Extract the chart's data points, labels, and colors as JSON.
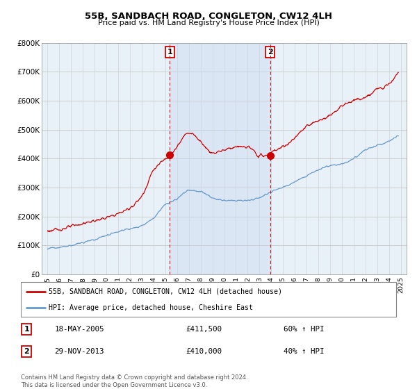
{
  "title": "55B, SANDBACH ROAD, CONGLETON, CW12 4LH",
  "subtitle": "Price paid vs. HM Land Registry's House Price Index (HPI)",
  "ylabel_ticks": [
    "£0",
    "£100K",
    "£200K",
    "£300K",
    "£400K",
    "£500K",
    "£600K",
    "£700K",
    "£800K"
  ],
  "ylim": [
    0,
    800000
  ],
  "xlim_start": 1994.5,
  "xlim_end": 2025.5,
  "x_ticks": [
    1995,
    1996,
    1997,
    1998,
    1999,
    2000,
    2001,
    2002,
    2003,
    2004,
    2005,
    2006,
    2007,
    2008,
    2009,
    2010,
    2011,
    2012,
    2013,
    2014,
    2015,
    2016,
    2017,
    2018,
    2019,
    2020,
    2021,
    2022,
    2023,
    2024,
    2025
  ],
  "sale1_x": 2005.38,
  "sale1_y": 411500,
  "sale2_x": 2013.91,
  "sale2_y": 410000,
  "sale1_date": "18-MAY-2005",
  "sale1_price": "£411,500",
  "sale1_hpi": "60% ↑ HPI",
  "sale2_date": "29-NOV-2013",
  "sale2_price": "£410,000",
  "sale2_hpi": "40% ↑ HPI",
  "red_line_color": "#cc0000",
  "blue_line_color": "#6699cc",
  "shade_color": "#ddeeff",
  "background_color": "#e8f0f8",
  "grid_color": "#cccccc",
  "legend_label_red": "55B, SANDBACH ROAD, CONGLETON, CW12 4LH (detached house)",
  "legend_label_blue": "HPI: Average price, detached house, Cheshire East",
  "footer": "Contains HM Land Registry data © Crown copyright and database right 2024.\nThis data is licensed under the Open Government Licence v3.0.",
  "red_key_x": [
    1995,
    1996,
    1997,
    1998,
    1999,
    2000,
    2001,
    2002,
    2003,
    2004,
    2005.38,
    2006,
    2007,
    2008,
    2009,
    2010,
    2011,
    2012,
    2013,
    2013.91,
    2014,
    2015,
    2016,
    2017,
    2018,
    2019,
    2020,
    2021,
    2022,
    2023,
    2024,
    2024.8
  ],
  "red_key_y": [
    150000,
    155000,
    165000,
    175000,
    185000,
    195000,
    210000,
    230000,
    270000,
    360000,
    411500,
    440000,
    490000,
    460000,
    420000,
    430000,
    440000,
    440000,
    410000,
    410000,
    420000,
    440000,
    470000,
    510000,
    530000,
    550000,
    580000,
    600000,
    610000,
    640000,
    660000,
    700000
  ],
  "blue_key_x": [
    1995,
    1996,
    1997,
    1998,
    1999,
    2000,
    2001,
    2002,
    2003,
    2004,
    2005,
    2006,
    2007,
    2008,
    2009,
    2010,
    2011,
    2012,
    2013,
    2014,
    2015,
    2016,
    2017,
    2018,
    2019,
    2020,
    2021,
    2022,
    2023,
    2024,
    2024.8
  ],
  "blue_key_y": [
    90000,
    93000,
    100000,
    110000,
    120000,
    135000,
    148000,
    158000,
    168000,
    195000,
    240000,
    260000,
    290000,
    285000,
    265000,
    255000,
    255000,
    255000,
    265000,
    285000,
    300000,
    320000,
    340000,
    360000,
    375000,
    380000,
    400000,
    430000,
    445000,
    460000,
    480000
  ]
}
